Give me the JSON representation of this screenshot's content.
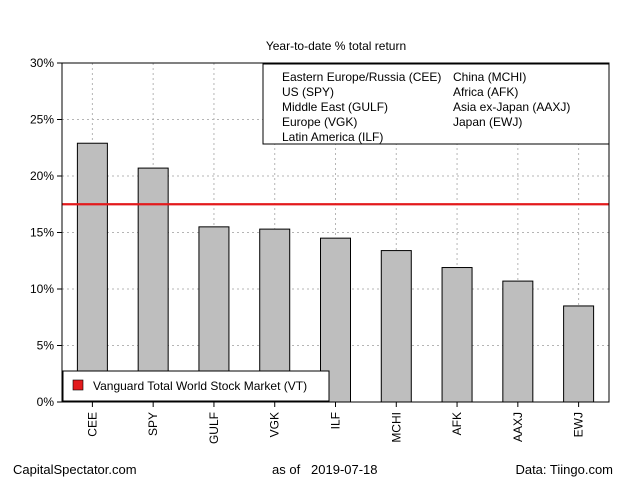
{
  "chart_data": {
    "type": "bar",
    "title": "Year-to-date % total return",
    "categories": [
      "CEE",
      "SPY",
      "GULF",
      "VGK",
      "ILF",
      "MCHI",
      "AFK",
      "AAXJ",
      "EWJ"
    ],
    "values": [
      22.9,
      20.7,
      15.5,
      15.3,
      14.5,
      13.4,
      11.9,
      10.7,
      8.5
    ],
    "ylim": [
      0,
      30
    ],
    "yticks": [
      0,
      5,
      10,
      15,
      20,
      25,
      30
    ],
    "ytick_labels": [
      "0%",
      "5%",
      "10%",
      "15%",
      "20%",
      "25%",
      "30%"
    ],
    "grid": true,
    "bar_color": "#bebebe",
    "reference_line": {
      "value": 17.5,
      "color": "#e31a1c",
      "label": "Vanguard Total World Stock Market (VT)"
    },
    "legend_top": {
      "placement": "top-right",
      "col1": [
        "Eastern Europe/Russia (CEE)",
        "US (SPY)",
        "Middle East (GULF)",
        "Europe (VGK)",
        "Latin America (ILF)"
      ],
      "col2": [
        "China (MCHI)",
        "Africa (AFK)",
        "Asia ex-Japan (AAXJ)",
        "Japan (EWJ)"
      ]
    },
    "legend_bottom_placement": "bottom-left"
  },
  "footer": {
    "left": "CapitalSpectator.com",
    "center": "as of   2019-07-18",
    "right": "Data: Tiingo.com"
  }
}
